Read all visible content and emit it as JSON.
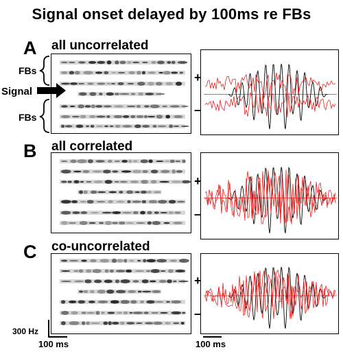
{
  "title": "Signal onset delayed by 100ms re FBs",
  "panels": [
    {
      "letter": "A",
      "condition": "all uncorrelated"
    },
    {
      "letter": "B",
      "condition": "all correlated"
    },
    {
      "letter": "C",
      "condition": "co-uncorrelated"
    }
  ],
  "labels": {
    "flanking_bands": "FBs",
    "signal": "Signal",
    "plus": "+",
    "minus": "–",
    "freq_scale": "300 Hz",
    "time_scale_left": "100 ms",
    "time_scale_right": "100 ms"
  },
  "colors": {
    "trace_black": "#000000",
    "trace_red": "#e8201e",
    "baseline": "#e8201e"
  }
}
